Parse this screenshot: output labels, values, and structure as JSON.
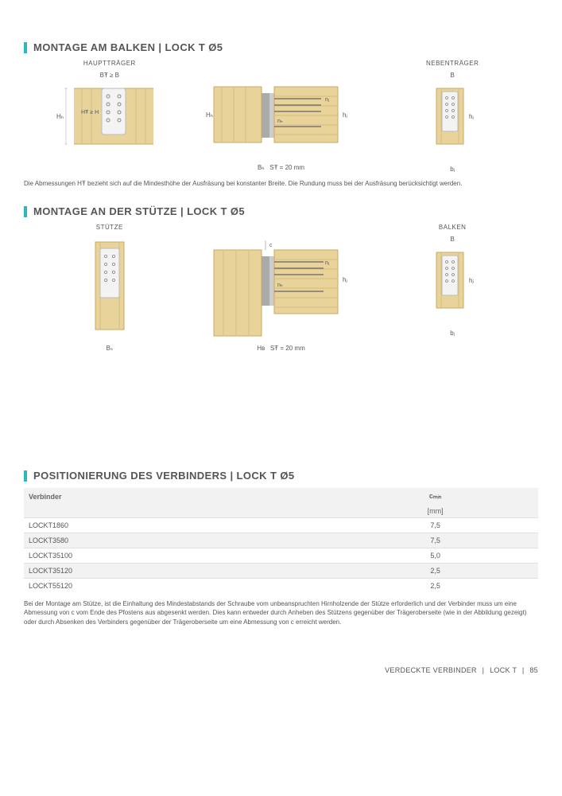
{
  "sections": {
    "s1": {
      "title": "MONTAGE AM BALKEN | LOCK T Ø5"
    },
    "s2": {
      "title": "MONTAGE AN DER STÜTZE | LOCK T Ø5"
    },
    "s3": {
      "title": "POSITIONIERUNG DES VERBINDERS | LOCK T Ø5"
    }
  },
  "headers": {
    "haupttraeger": "HAUPTTRÄGER",
    "nebentraeger": "NEBENTRÄGER",
    "stuetze": "STÜTZE",
    "balken": "BALKEN"
  },
  "labels": {
    "HH": "Hₕ",
    "HF_ge_H": "HŦ ≥ H",
    "BF_ge_B": "BŦ ≥ B",
    "B": "B",
    "hj": "hⱼ",
    "bj": "bⱼ",
    "nj": "nⱼ",
    "nH": "nₕ",
    "BH": "Bₕ",
    "SF": "SŦ = 20 mm",
    "HB": "Hʙ",
    "Bs": "Bₛ",
    "c": "c"
  },
  "notes": {
    "n1": "Die Abmessungen HŦ bezieht sich auf die Mindesthöhe der Ausfräsung bei konstanter Breite. Die Rundung muss bei der Ausfräsung berücksichtigt werden.",
    "n2": "Bei der Montage am Stütze, ist die Einhaltung des Mindestabstands der Schraube vom unbeanspruchten Hirnholzende der Stütze erforderlich und der Verbinder muss um eine Abmessung von c vom Ende des Pfostens aus abgesenkt werden. Dies kann entweder durch Anheben des Stützens gegenüber der Trägeroberseite (wie in der Abbildung gezeigt) oder durch Absenken des Verbinders gegenüber der Trägeroberseite um eine Abmessung von c erreicht werden."
  },
  "table": {
    "col1": "Verbinder",
    "col2": "cₘᵢₙ",
    "unit": "[mm]",
    "rows": [
      {
        "name": "LOCKT1860",
        "val": "7,5"
      },
      {
        "name": "LOCKT3580",
        "val": "7,5"
      },
      {
        "name": "LOCKT35100",
        "val": "5,0"
      },
      {
        "name": "LOCKT35120",
        "val": "2,5"
      },
      {
        "name": "LOCKT55120",
        "val": "2,5"
      }
    ]
  },
  "footer": {
    "text1": "VERDECKTE VERBINDER",
    "text2": "LOCK T",
    "page": "85"
  },
  "colors": {
    "wood_light": "#e8d39a",
    "wood_mid": "#d9be7d",
    "wood_dark": "#c9aa5f",
    "plate": "#f3f3f3",
    "plate_border": "#bbb",
    "screw": "#888",
    "accent": "#2bb7c6"
  }
}
